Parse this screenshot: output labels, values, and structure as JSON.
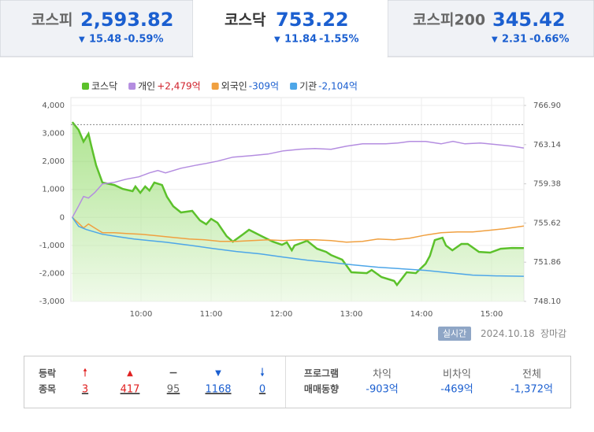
{
  "tabs": [
    {
      "name": "코스피",
      "value": "2,593.82",
      "change": "15.48",
      "rate": "-0.59%"
    },
    {
      "name": "코스닥",
      "value": "753.22",
      "change": "11.84",
      "rate": "-1.55%"
    },
    {
      "name": "코스피200",
      "value": "345.42",
      "change": "2.31",
      "rate": "-0.66%"
    }
  ],
  "chart_data": {
    "type": "line",
    "xlim": [
      9,
      15.5
    ],
    "xticks": [
      {
        "value": 10,
        "label": "10:00"
      },
      {
        "value": 11,
        "label": "11:00"
      },
      {
        "value": 12,
        "label": "12:00"
      },
      {
        "value": 13,
        "label": "13:00"
      },
      {
        "value": 14,
        "label": "14:00"
      },
      {
        "value": 15,
        "label": "15:00"
      }
    ],
    "ylim": [
      -3000,
      4000
    ],
    "yticks": [
      {
        "value": -3000,
        "label": "-3,000"
      },
      {
        "value": -2000,
        "label": "-2,000"
      },
      {
        "value": -1000,
        "label": "-1,000"
      },
      0,
      {
        "value": 1000,
        "label": "1,000"
      },
      {
        "value": 2000,
        "label": "2,000"
      },
      {
        "value": 3000,
        "label": "3,000"
      },
      {
        "value": 4000,
        "label": "4,000"
      }
    ],
    "y2lim": [
      748.1,
      766.9
    ],
    "y2ticks": [
      {
        "value": 748.1,
        "label": "748.10"
      },
      751.86,
      755.62,
      759.38,
      763.14,
      {
        "value": 766.9,
        "label": "766.90"
      }
    ],
    "ref_line": 765.06,
    "grid": true,
    "series": [
      {
        "name": "코스닥",
        "color": "#5cc12b",
        "axis": "y2",
        "area": true,
        "x": [
          9.02,
          9.11,
          9.18,
          9.25,
          9.29,
          9.36,
          9.45,
          9.62,
          9.74,
          9.88,
          9.92,
          9.99,
          10.06,
          10.12,
          10.19,
          10.3,
          10.37,
          10.46,
          10.57,
          10.73,
          10.84,
          10.93,
          11.0,
          11.09,
          11.22,
          11.31,
          11.45,
          11.54,
          11.72,
          11.88,
          12.01,
          12.08,
          12.15,
          12.19,
          12.37,
          12.51,
          12.64,
          12.71,
          12.87,
          13.0,
          13.22,
          13.29,
          13.43,
          13.61,
          13.65,
          13.79,
          13.92,
          14.06,
          14.12,
          14.19,
          14.3,
          14.35,
          14.44,
          14.57,
          14.66,
          14.82,
          14.98,
          15.13,
          15.29,
          15.46
        ],
        "values": [
          765.31,
          764.55,
          763.43,
          764.18,
          763.05,
          761.16,
          759.5,
          759.27,
          758.89,
          758.67,
          759.12,
          758.52,
          759.12,
          758.74,
          759.5,
          759.27,
          758.14,
          757.23,
          756.63,
          756.78,
          755.87,
          755.5,
          756.02,
          755.65,
          754.36,
          753.83,
          754.51,
          754.97,
          754.36,
          753.83,
          753.53,
          753.76,
          753.0,
          753.46,
          753.91,
          753.15,
          752.85,
          752.55,
          752.1,
          750.89,
          750.81,
          751.11,
          750.43,
          750.06,
          749.68,
          750.89,
          750.81,
          751.72,
          752.47,
          753.98,
          754.21,
          753.46,
          753.0,
          753.61,
          753.61,
          752.85,
          752.78,
          753.15,
          753.23,
          753.22
        ]
      },
      {
        "name": "개인",
        "value_label": "+2,479억",
        "color": "#b48de0",
        "x": [
          9.02,
          9.11,
          9.18,
          9.25,
          9.34,
          9.45,
          9.62,
          9.79,
          9.97,
          10.12,
          10.24,
          10.35,
          10.57,
          10.8,
          10.93,
          11.09,
          11.31,
          11.58,
          11.81,
          12.03,
          12.26,
          12.48,
          12.71,
          12.93,
          13.16,
          13.49,
          13.66,
          13.83,
          14.06,
          14.28,
          14.45,
          14.62,
          14.84,
          15.07,
          15.29,
          15.46
        ],
        "values": [
          0,
          410,
          747,
          691,
          888,
          1197,
          1253,
          1365,
          1449,
          1590,
          1674,
          1590,
          1758,
          1871,
          1927,
          2011,
          2152,
          2208,
          2264,
          2377,
          2433,
          2461,
          2433,
          2545,
          2629,
          2629,
          2657,
          2714,
          2714,
          2629,
          2714,
          2629,
          2657,
          2601,
          2545,
          2479
        ]
      },
      {
        "name": "외국인",
        "value_label": "-309억",
        "color": "#f0a040",
        "x": [
          9.02,
          9.11,
          9.18,
          9.25,
          9.34,
          9.45,
          9.62,
          9.79,
          10.01,
          10.24,
          10.46,
          10.69,
          10.91,
          11.13,
          11.36,
          11.58,
          11.81,
          12.03,
          12.26,
          12.48,
          12.71,
          12.93,
          13.16,
          13.38,
          13.61,
          13.83,
          14.06,
          14.28,
          14.51,
          14.73,
          14.96,
          15.18,
          15.46
        ],
        "values": [
          0,
          -208,
          -376,
          -236,
          -376,
          -545,
          -545,
          -573,
          -601,
          -657,
          -714,
          -770,
          -798,
          -854,
          -854,
          -826,
          -798,
          -826,
          -798,
          -798,
          -826,
          -882,
          -854,
          -770,
          -798,
          -742,
          -629,
          -545,
          -517,
          -517,
          -461,
          -405,
          -309
        ]
      },
      {
        "name": "기관",
        "value_label": "-2,104억",
        "color": "#4da6e8",
        "x": [
          9.02,
          9.11,
          9.22,
          9.45,
          9.67,
          9.9,
          10.12,
          10.35,
          10.69,
          11.02,
          11.36,
          11.7,
          12.03,
          12.37,
          12.71,
          13.04,
          13.38,
          13.72,
          14.06,
          14.39,
          14.73,
          15.07,
          15.46
        ],
        "values": [
          0,
          -320,
          -433,
          -601,
          -685,
          -770,
          -826,
          -882,
          -994,
          -1107,
          -1219,
          -1303,
          -1416,
          -1528,
          -1612,
          -1697,
          -1781,
          -1837,
          -1893,
          -1978,
          -2062,
          -2090,
          -2104
        ]
      }
    ]
  },
  "status": {
    "badge": "실시간",
    "date": "2024.10.18",
    "state": "장마감"
  },
  "breadth": {
    "label_1": "등락",
    "label_2": "종목",
    "counts": [
      "3",
      "417",
      "95",
      "1168",
      "0"
    ]
  },
  "program": {
    "label_1": "프로그램",
    "label_2": "매매동향",
    "headers": [
      "차익",
      "비차익",
      "전체"
    ],
    "values": [
      "-903억",
      "-469억",
      "-1,372억"
    ]
  }
}
